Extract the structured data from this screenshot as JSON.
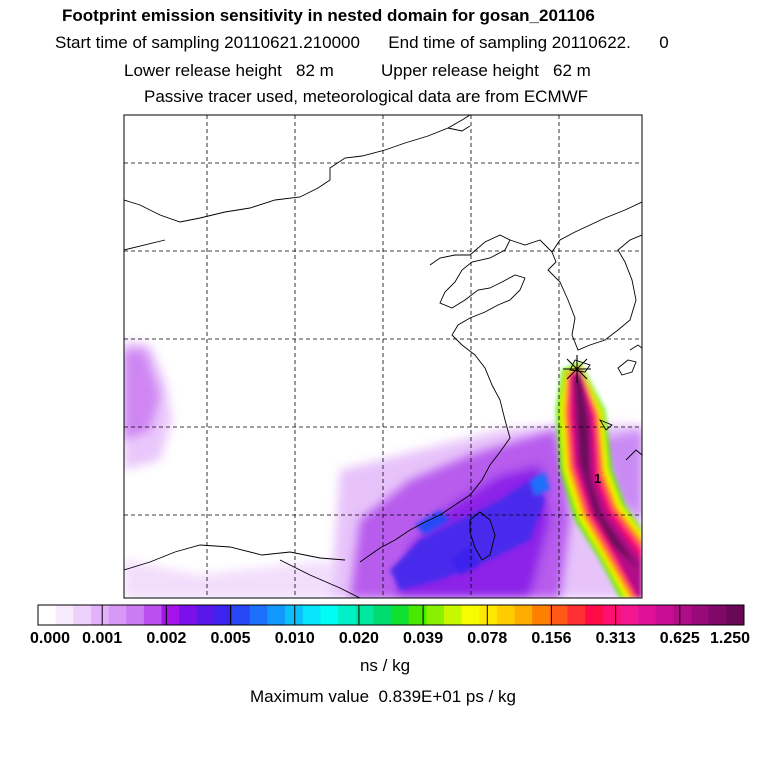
{
  "header": {
    "title": "Footprint emission sensitivity in nested domain for gosan_201106",
    "line2": "Start time of sampling 20110621.210000      End time of sampling 20110622.      0",
    "line3": "Lower release height   82 m          Upper release height   62 m",
    "line4": "Passive tracer used, meteorological data are from ECMWF"
  },
  "colorbar": {
    "ticks": [
      "0.000",
      "0.001",
      "0.002",
      "0.005",
      "0.010",
      "0.020",
      "0.039",
      "0.078",
      "0.156",
      "0.313",
      "0.625",
      "1.250"
    ],
    "colors": [
      "#ffffff",
      "#f7eafd",
      "#efd2fc",
      "#e4b2fa",
      "#d898f6",
      "#cc7cf2",
      "#bc50ee",
      "#a414ea",
      "#7a10ea",
      "#5818ea",
      "#3c24ee",
      "#2848f6",
      "#1c70fa",
      "#1098fc",
      "#0cc0fc",
      "#08e4fc",
      "#00fcf4",
      "#00f0c8",
      "#00e8a0",
      "#00dc70",
      "#10e030",
      "#48e800",
      "#88f000",
      "#c8f800",
      "#f8fc00",
      "#ffe800",
      "#ffcc00",
      "#ffac00",
      "#ff8000",
      "#ff5818",
      "#ff3034",
      "#ff0c48",
      "#ff1070",
      "#f41890",
      "#e01098",
      "#c80c94",
      "#b00c88",
      "#980a78",
      "#800868",
      "#6a0858"
    ],
    "units": "ns / kg",
    "max_label": "Maximum value  0.839E+01 ps / kg"
  },
  "map": {
    "receptor": "gosan",
    "plume_peak_label": "1"
  }
}
